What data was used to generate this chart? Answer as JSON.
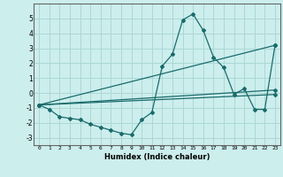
{
  "xlabel": "Humidex (Indice chaleur)",
  "bg_color": "#cceeed",
  "grid_color": "#aad8d6",
  "line_color": "#1a6b6b",
  "xlim": [
    -0.5,
    23.5
  ],
  "ylim": [
    -3.5,
    6.0
  ],
  "yticks": [
    -3,
    -2,
    -1,
    0,
    1,
    2,
    3,
    4,
    5
  ],
  "xticks": [
    0,
    1,
    2,
    3,
    4,
    5,
    6,
    7,
    8,
    9,
    10,
    11,
    12,
    13,
    14,
    15,
    16,
    17,
    18,
    19,
    20,
    21,
    22,
    23
  ],
  "lines": [
    {
      "x": [
        0,
        1,
        2,
        3,
        4,
        5,
        6,
        7,
        8,
        9,
        10,
        11,
        12,
        13,
        14,
        15,
        16,
        17,
        18,
        19,
        20,
        21,
        22,
        23
      ],
      "y": [
        -0.8,
        -1.1,
        -1.6,
        -1.7,
        -1.8,
        -2.1,
        -2.3,
        -2.5,
        -2.7,
        -2.8,
        -1.8,
        -1.3,
        1.8,
        2.6,
        4.9,
        5.3,
        4.2,
        2.4,
        1.7,
        -0.1,
        0.3,
        -1.1,
        -1.1,
        3.2
      ]
    },
    {
      "x": [
        0,
        23
      ],
      "y": [
        -0.8,
        -0.1
      ]
    },
    {
      "x": [
        0,
        23
      ],
      "y": [
        -0.8,
        3.2
      ]
    },
    {
      "x": [
        0,
        23
      ],
      "y": [
        -0.8,
        0.2
      ]
    }
  ]
}
